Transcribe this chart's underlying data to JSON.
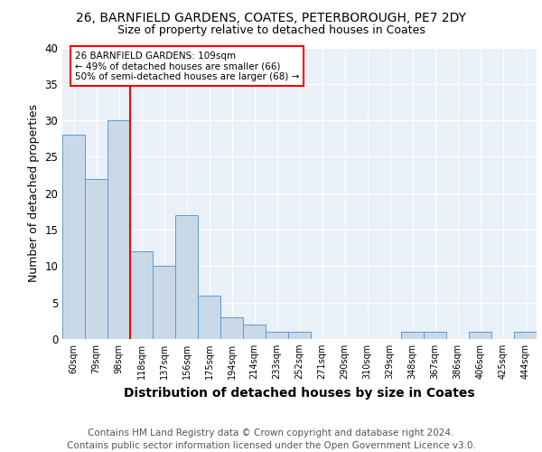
{
  "title1": "26, BARNFIELD GARDENS, COATES, PETERBOROUGH, PE7 2DY",
  "title2": "Size of property relative to detached houses in Coates",
  "xlabel": "Distribution of detached houses by size in Coates",
  "ylabel": "Number of detached properties",
  "bin_labels": [
    "60sqm",
    "79sqm",
    "98sqm",
    "118sqm",
    "137sqm",
    "156sqm",
    "175sqm",
    "194sqm",
    "214sqm",
    "233sqm",
    "252sqm",
    "271sqm",
    "290sqm",
    "310sqm",
    "329sqm",
    "348sqm",
    "367sqm",
    "386sqm",
    "406sqm",
    "425sqm",
    "444sqm"
  ],
  "bar_values": [
    28,
    22,
    30,
    12,
    10,
    17,
    6,
    3,
    2,
    1,
    1,
    0,
    0,
    0,
    0,
    1,
    1,
    0,
    1,
    0,
    1
  ],
  "bar_color": "#c9d9e8",
  "bar_edge_color": "#5b9bd5",
  "vline_x": 2.5,
  "annotation_text": "26 BARNFIELD GARDENS: 109sqm\n← 49% of detached houses are smaller (66)\n50% of semi-detached houses are larger (68) →",
  "annotation_box_color": "white",
  "annotation_box_edge_color": "red",
  "vline_color": "red",
  "ylim": [
    0,
    40
  ],
  "yticks": [
    0,
    5,
    10,
    15,
    20,
    25,
    30,
    35,
    40
  ],
  "background_color": "#eaf0f7",
  "footer_text": "Contains HM Land Registry data © Crown copyright and database right 2024.\nContains public sector information licensed under the Open Government Licence v3.0.",
  "title1_fontsize": 10,
  "title2_fontsize": 9,
  "xlabel_fontsize": 10,
  "ylabel_fontsize": 9,
  "footer_fontsize": 7.5
}
